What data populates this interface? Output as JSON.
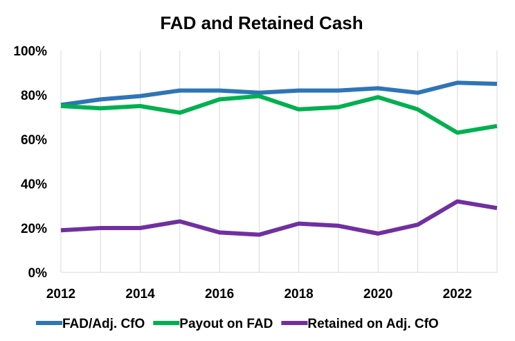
{
  "chart_data": {
    "type": "line",
    "title": "FAD and Retained Cash",
    "xlabel": "",
    "ylabel": "",
    "x": [
      2012,
      2013,
      2014,
      2015,
      2016,
      2017,
      2018,
      2019,
      2020,
      2021,
      2022,
      2023
    ],
    "x_tick_labels": [
      "2012",
      "2014",
      "2016",
      "2018",
      "2020",
      "2022"
    ],
    "x_range": [
      2012,
      2023
    ],
    "y_tick_labels": [
      "0%",
      "20%",
      "40%",
      "60%",
      "80%",
      "100%"
    ],
    "ylim": [
      0,
      100
    ],
    "grid": "vertical lines per year",
    "legend_position": "bottom",
    "series": [
      {
        "name": "FAD/Adj. CfO",
        "color": "#2E75B6",
        "values": [
          75.5,
          78,
          79.5,
          82,
          82,
          81,
          82,
          82,
          83,
          81,
          85.5,
          85
        ]
      },
      {
        "name": "Payout on FAD",
        "color": "#00B050",
        "values": [
          75,
          74,
          75,
          72,
          78,
          79.5,
          73.5,
          74.5,
          79,
          73.5,
          63,
          66
        ]
      },
      {
        "name": "Retained on Adj. CfO",
        "color": "#7030A0",
        "values": [
          19,
          20,
          20,
          23,
          18,
          17,
          22,
          21,
          17.5,
          21.5,
          32,
          29
        ]
      }
    ]
  }
}
